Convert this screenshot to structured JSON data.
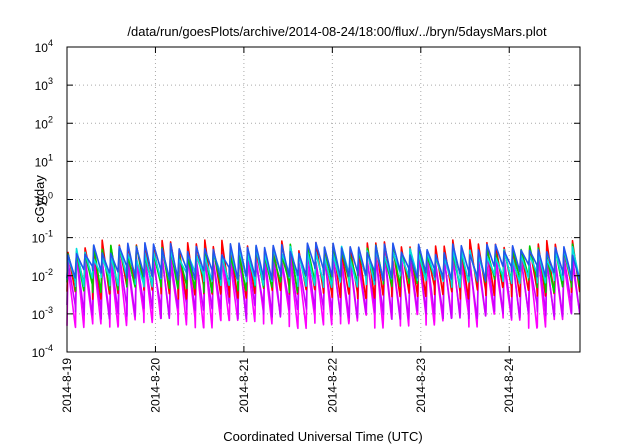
{
  "chart_data": {
    "type": "line",
    "title": "/data/run/goesPlots/archive/2014-08-24/18:00/flux/../bryn/5daysMars.plot",
    "xlabel": "Coordinated Universal Time (UTC)",
    "ylabel": "cGy/day",
    "y_scale": "log",
    "grid": true,
    "legend": "none",
    "x_range_days": [
      0,
      5.8
    ],
    "ylim_log10": [
      -4,
      4
    ],
    "x_ticks": [
      {
        "label": "2014-8-19",
        "day": 0
      },
      {
        "label": "2014-8-20",
        "day": 1
      },
      {
        "label": "2014-8-21",
        "day": 2
      },
      {
        "label": "2014-8-22",
        "day": 3
      },
      {
        "label": "2014-8-23",
        "day": 4
      },
      {
        "label": "2014-8-24",
        "day": 5
      }
    ],
    "y_ticks": [
      {
        "base": "10",
        "exp": "-4",
        "log": -4
      },
      {
        "base": "10",
        "exp": "-3",
        "log": -3
      },
      {
        "base": "10",
        "exp": "-2",
        "log": -2
      },
      {
        "base": "10",
        "exp": "-1",
        "log": -1
      },
      {
        "base": "10",
        "exp": "0",
        "log": 0
      },
      {
        "base": "10",
        "exp": "1",
        "log": 1
      },
      {
        "base": "10",
        "exp": "2",
        "log": 2
      },
      {
        "base": "10",
        "exp": "3",
        "log": 3
      },
      {
        "base": "10",
        "exp": "4",
        "log": 4
      }
    ],
    "cycles_per_day": 10.3,
    "series": [
      {
        "color": "#ff00ff",
        "peak": 0.025,
        "trough": 0.0007
      },
      {
        "color": "#cc00ff",
        "peak": 0.03,
        "trough": 0.0012
      },
      {
        "color": "#ff0000",
        "peak": 0.06,
        "trough": 0.004
      },
      {
        "color": "#00cc00",
        "peak": 0.045,
        "trough": 0.006
      },
      {
        "color": "#00dddd",
        "peak": 0.04,
        "trough": 0.008
      },
      {
        "color": "#2255ee",
        "peak": 0.05,
        "trough": 0.012
      }
    ]
  }
}
